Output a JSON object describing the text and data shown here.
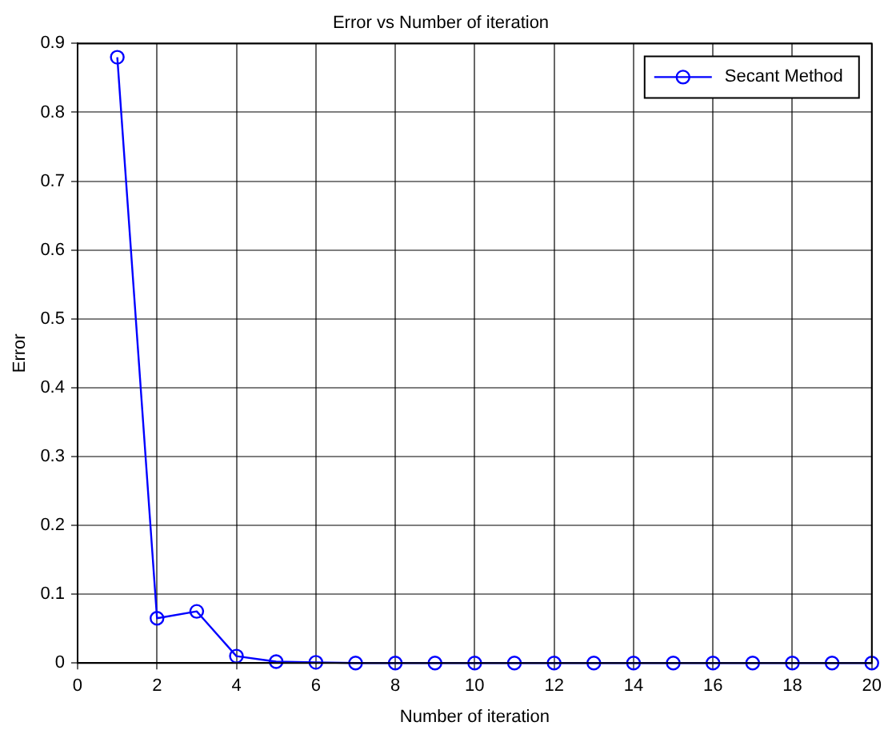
{
  "chart_data": {
    "type": "line",
    "title": "Error vs Number of iteration",
    "xlabel": "Number of iteration",
    "ylabel": "Error",
    "x": [
      1,
      2,
      3,
      4,
      5,
      6,
      7,
      8,
      9,
      10,
      11,
      12,
      13,
      14,
      15,
      16,
      17,
      18,
      19,
      20
    ],
    "series": [
      {
        "name": "Secant Method",
        "color": "#0000ff",
        "values": [
          0.88,
          0.065,
          0.075,
          0.01,
          0.002,
          0.001,
          0,
          0,
          0,
          0,
          0,
          0,
          0,
          0,
          0,
          0,
          0,
          0,
          0,
          0
        ]
      }
    ],
    "xlim": [
      0,
      20
    ],
    "xticks": [
      0,
      2,
      4,
      6,
      8,
      10,
      12,
      14,
      16,
      18,
      20
    ],
    "ylim": [
      0,
      0.9
    ],
    "yticks": [
      0,
      0.1,
      0.2,
      0.3,
      0.4,
      0.5,
      0.6,
      0.7,
      0.8,
      0.9
    ],
    "grid": true,
    "legend": "top right",
    "marker": "circle",
    "line_style": "solid"
  }
}
